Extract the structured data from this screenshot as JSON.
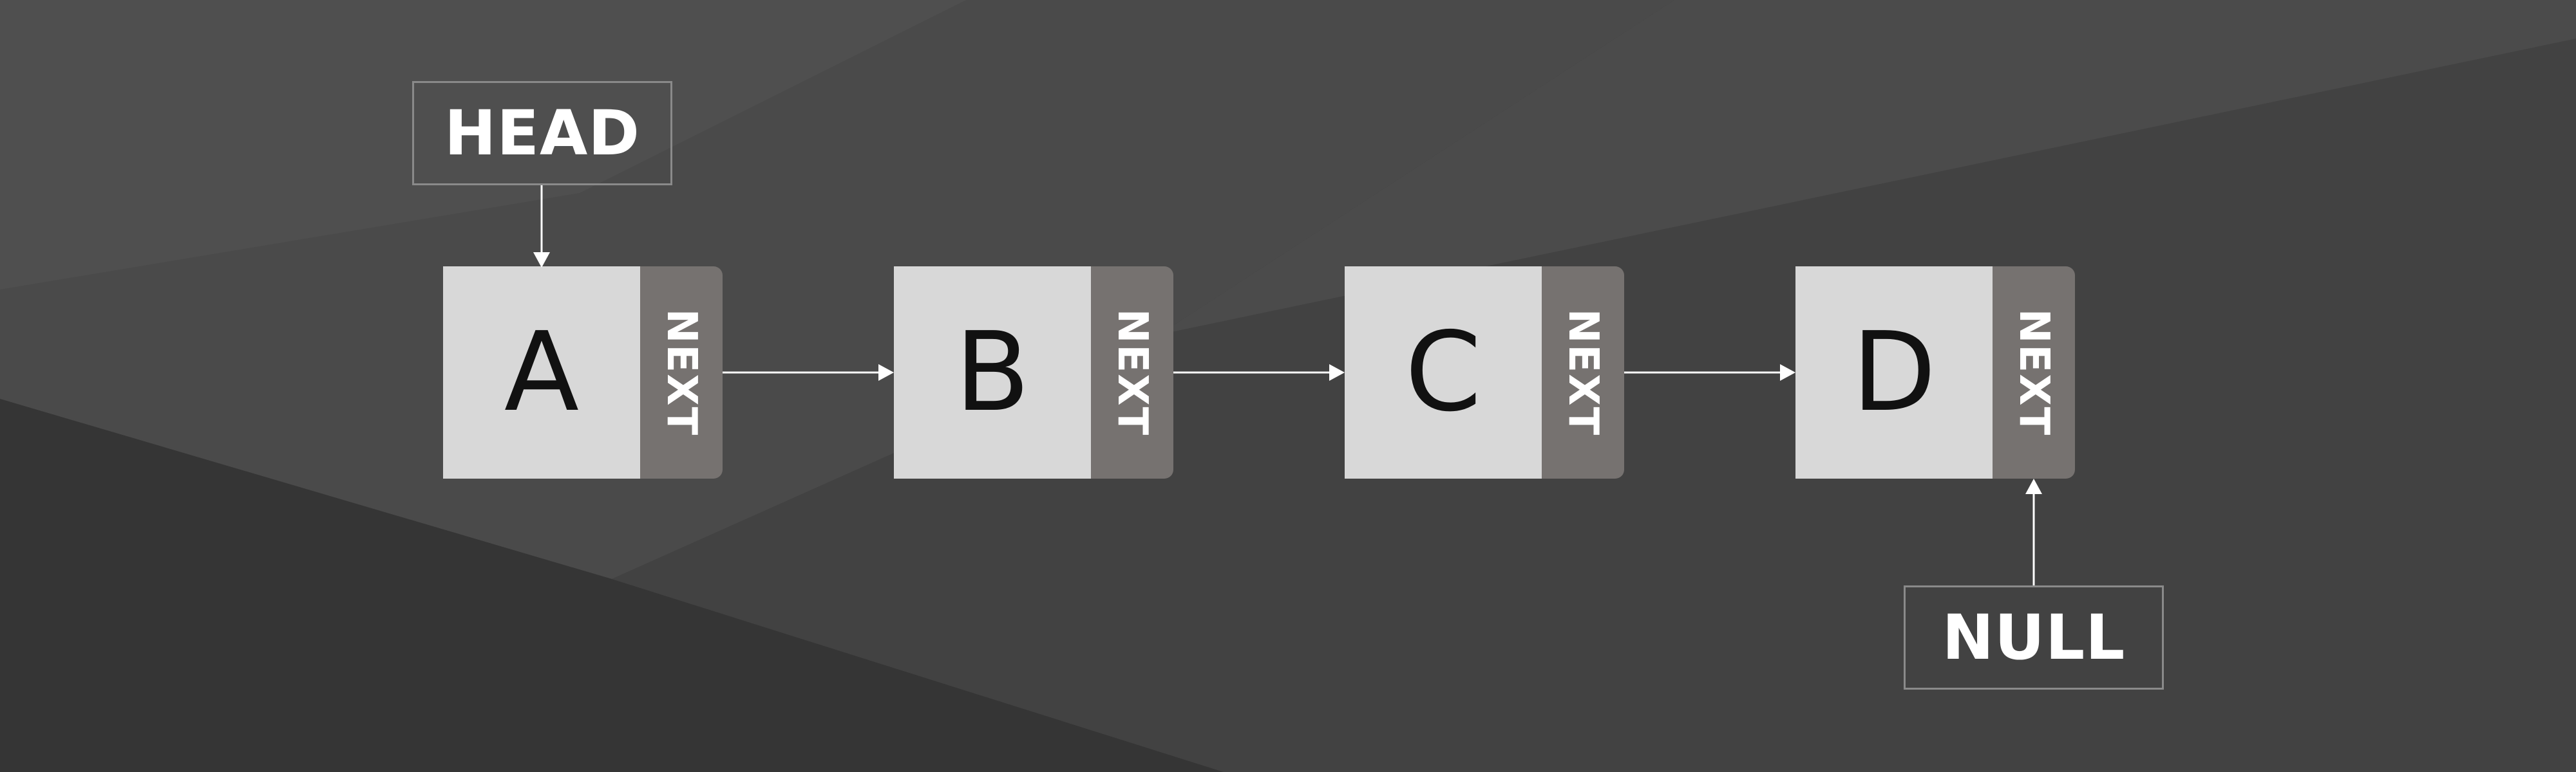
{
  "head": {
    "label": "HEAD"
  },
  "null": {
    "label": "NULL"
  },
  "nodes": [
    {
      "value": "A",
      "pointer_label": "NEXT"
    },
    {
      "value": "B",
      "pointer_label": "NEXT"
    },
    {
      "value": "C",
      "pointer_label": "NEXT"
    },
    {
      "value": "D",
      "pointer_label": "NEXT"
    }
  ],
  "colors": {
    "background": "#3a3a3a",
    "node_value_fill": "#d8d8d8",
    "node_pointer_fill": "#767270",
    "label_border": "#8a8a8a",
    "arrow": "#ffffff"
  }
}
